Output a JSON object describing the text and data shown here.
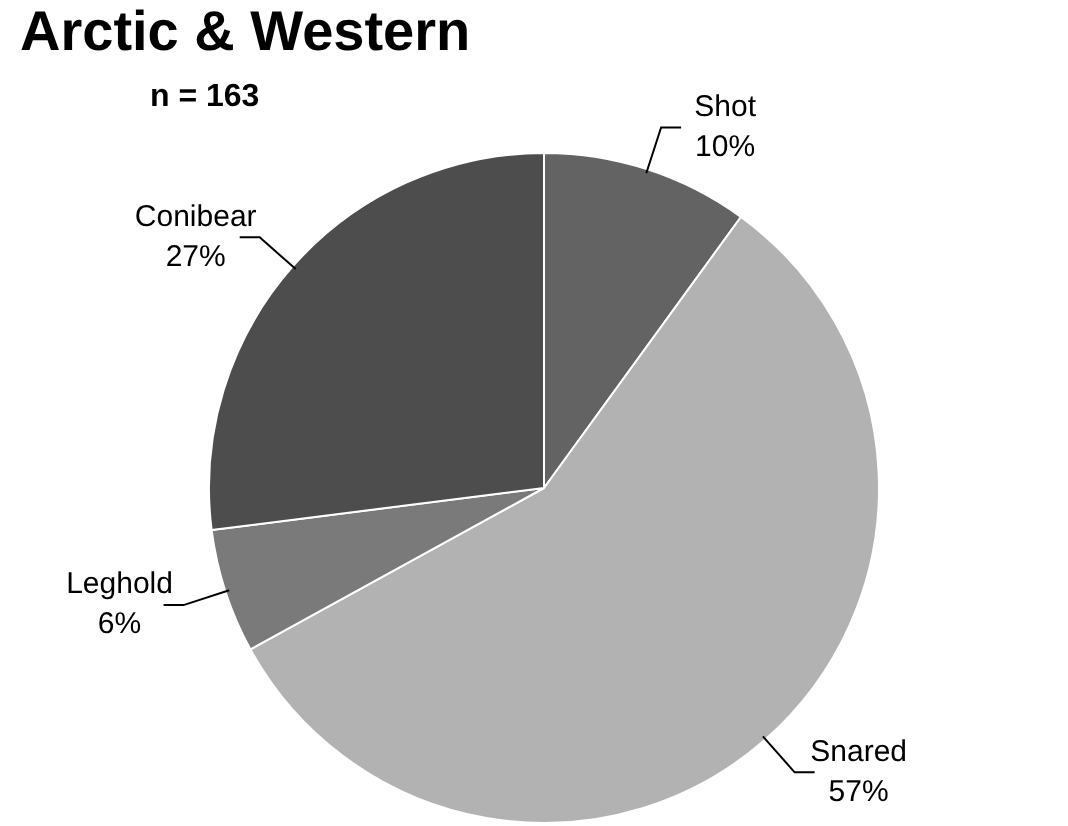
{
  "chart_data": {
    "type": "pie",
    "title": "Arctic & Western",
    "annotations": [
      "n = 163"
    ],
    "categories": [
      "Shot",
      "Snared",
      "Leghold",
      "Conibear"
    ],
    "values": [
      10,
      57,
      6,
      27
    ],
    "colors": [
      "#636363",
      "#b2b2b2",
      "#7a7a7a",
      "#4d4d4d"
    ],
    "value_labels": [
      "10%",
      "57%",
      "6%",
      "27%"
    ],
    "legend": false
  }
}
